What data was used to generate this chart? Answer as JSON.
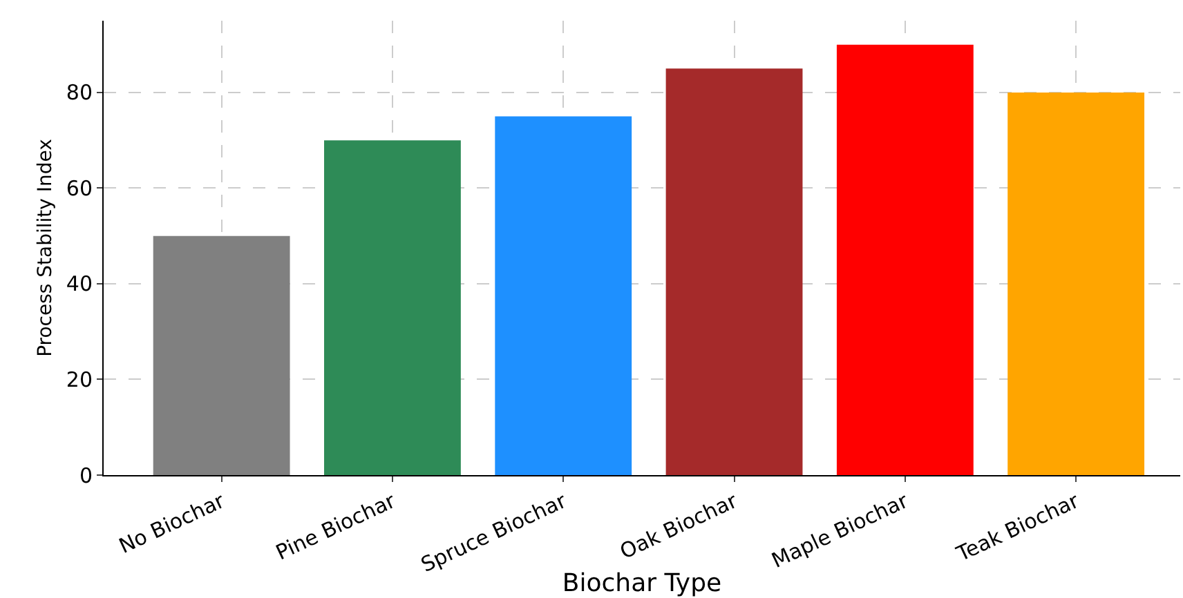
{
  "chart_data": {
    "type": "bar",
    "xlabel": "Biochar Type",
    "ylabel": "Process Stability Index",
    "categories": [
      "No Biochar",
      "Pine Biochar",
      "Spruce Biochar",
      "Oak Biochar",
      "Maple Biochar",
      "Teak Biochar"
    ],
    "values": [
      50,
      70,
      75,
      85,
      90,
      80
    ],
    "colors": [
      "#808080",
      "#2e8b57",
      "#1e90ff",
      "#a52a2a",
      "#ff0000",
      "#ffa500"
    ],
    "ylim": [
      0,
      95
    ],
    "yticks": [
      0,
      20,
      40,
      60,
      80
    ],
    "grid": true
  }
}
